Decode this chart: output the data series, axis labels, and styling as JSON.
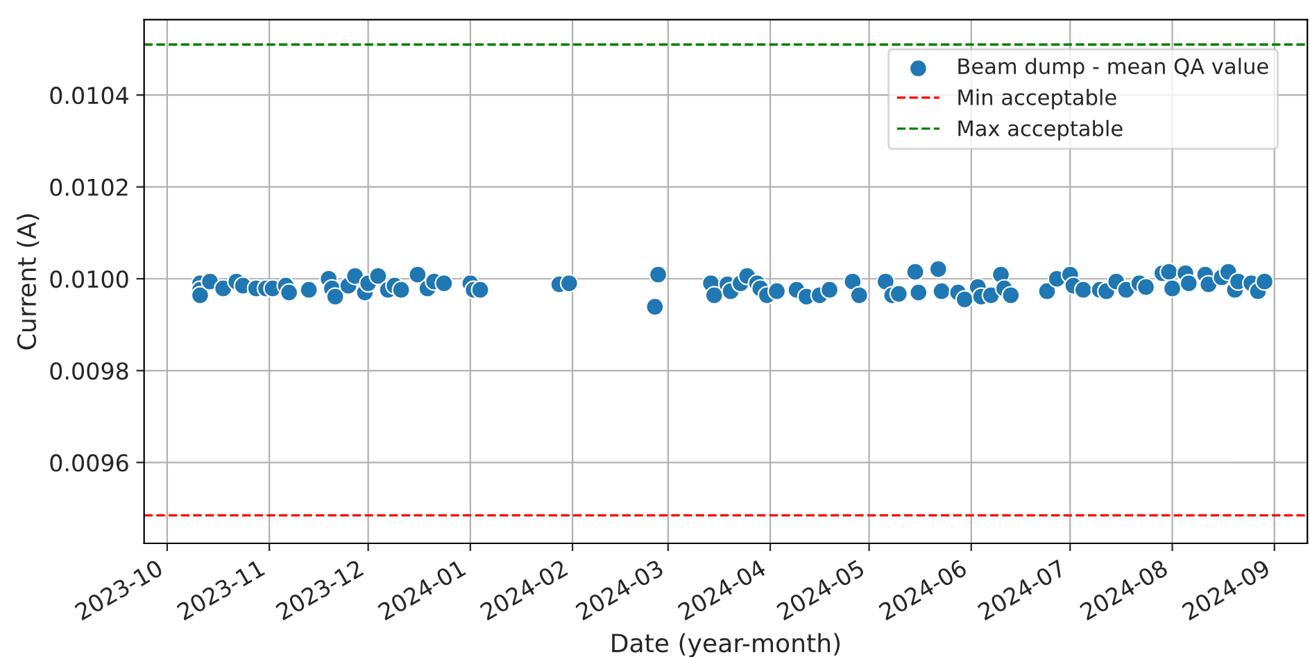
{
  "chart_data": {
    "type": "scatter",
    "xlabel": "Date (year-month)",
    "ylabel": "Current (A)",
    "series": [
      {
        "name": "Beam dump - mean QA value",
        "color": "#1f77b4",
        "x": [
          "2023-10-11",
          "2023-10-11",
          "2023-10-11",
          "2023-10-14",
          "2023-10-18",
          "2023-10-22",
          "2023-10-24",
          "2023-10-28",
          "2023-10-31",
          "2023-11-02",
          "2023-11-06",
          "2023-11-07",
          "2023-11-13",
          "2023-11-19",
          "2023-11-20",
          "2023-11-21",
          "2023-11-25",
          "2023-11-27",
          "2023-11-30",
          "2023-12-01",
          "2023-12-04",
          "2023-12-07",
          "2023-12-09",
          "2023-12-11",
          "2023-12-16",
          "2023-12-19",
          "2023-12-21",
          "2023-12-24",
          "2024-01-01",
          "2024-01-02",
          "2024-01-04",
          "2024-01-28",
          "2024-01-31",
          "2024-02-26",
          "2024-02-27",
          "2024-03-14",
          "2024-03-15",
          "2024-03-19",
          "2024-03-20",
          "2024-03-23",
          "2024-03-25",
          "2024-03-28",
          "2024-03-29",
          "2024-03-31",
          "2024-04-03",
          "2024-04-09",
          "2024-04-12",
          "2024-04-16",
          "2024-04-19",
          "2024-04-26",
          "2024-04-28",
          "2024-05-06",
          "2024-05-08",
          "2024-05-10",
          "2024-05-15",
          "2024-05-16",
          "2024-05-22",
          "2024-05-23",
          "2024-05-28",
          "2024-05-30",
          "2024-06-03",
          "2024-06-04",
          "2024-06-07",
          "2024-06-10",
          "2024-06-11",
          "2024-06-13",
          "2024-06-24",
          "2024-06-27",
          "2024-07-01",
          "2024-07-02",
          "2024-07-05",
          "2024-07-10",
          "2024-07-12",
          "2024-07-15",
          "2024-07-18",
          "2024-07-22",
          "2024-07-24",
          "2024-07-29",
          "2024-07-31",
          "2024-08-01",
          "2024-08-05",
          "2024-08-06",
          "2024-08-11",
          "2024-08-12",
          "2024-08-16",
          "2024-08-18",
          "2024-08-20",
          "2024-08-21",
          "2024-08-25",
          "2024-08-27",
          "2024-08-29"
        ],
        "values": [
          0.00999,
          0.009976,
          0.009964,
          0.009994,
          0.009979,
          0.009994,
          0.009985,
          0.009979,
          0.009979,
          0.009979,
          0.009985,
          0.00997,
          0.009976,
          0.01,
          0.009979,
          0.009961,
          0.009985,
          0.010006,
          0.00997,
          0.00999,
          0.010006,
          0.009976,
          0.009985,
          0.009976,
          0.010009,
          0.009979,
          0.009994,
          0.00999,
          0.00999,
          0.009976,
          0.009976,
          0.009988,
          0.00999,
          0.009939,
          0.010009,
          0.00999,
          0.009964,
          0.009988,
          0.009973,
          0.00999,
          0.010006,
          0.00999,
          0.009979,
          0.009964,
          0.009973,
          0.009976,
          0.009961,
          0.009964,
          0.009976,
          0.009994,
          0.009964,
          0.009994,
          0.009964,
          0.009967,
          0.010015,
          0.00997,
          0.010021,
          0.009973,
          0.00997,
          0.009955,
          0.009982,
          0.009961,
          0.009964,
          0.010009,
          0.009979,
          0.009964,
          0.009973,
          0.01,
          0.010009,
          0.009985,
          0.009976,
          0.009976,
          0.009973,
          0.009994,
          0.009976,
          0.00999,
          0.009982,
          0.010012,
          0.010015,
          0.009979,
          0.010012,
          0.00999,
          0.010009,
          0.009988,
          0.010003,
          0.010015,
          0.009976,
          0.009994,
          0.00999,
          0.009973,
          0.009994
        ]
      }
    ],
    "ref_lines": [
      {
        "axis": "y",
        "value": 0.009485,
        "label": "Min acceptable",
        "color": "#ff0000",
        "line_style": "dashed"
      },
      {
        "axis": "y",
        "value": 0.01051,
        "label": "Max acceptable",
        "color": "#008000",
        "line_style": "dashed"
      }
    ],
    "xlim": [
      "2023-09-24",
      "2024-09-11"
    ],
    "xticks": [
      "2023-10",
      "2023-11",
      "2023-12",
      "2024-01",
      "2024-02",
      "2024-03",
      "2024-04",
      "2024-05",
      "2024-06",
      "2024-07",
      "2024-08",
      "2024-09"
    ],
    "ylim": [
      0.009424,
      0.010564
    ],
    "yticks": [
      0.0096,
      0.0098,
      {
        "value": 0.01,
        "label": "0.0100"
      },
      0.0102,
      0.0104
    ],
    "grid": true,
    "legend": "top right",
    "marker": "circle"
  }
}
